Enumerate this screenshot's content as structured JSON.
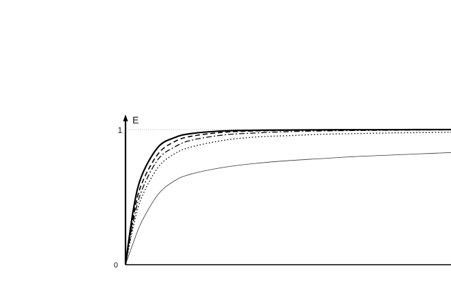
{
  "chart_data": {
    "type": "line",
    "title": "",
    "xlabel": "",
    "ylabel": "E",
    "origin_label": "0",
    "ytick_labels": [
      "1"
    ],
    "ylim": [
      0,
      1
    ],
    "xlim": [
      0,
      10
    ],
    "grid": false,
    "reference_line": {
      "y": 1,
      "style": "dotted"
    },
    "x": [
      0,
      0.25,
      0.5,
      1,
      1.5,
      2,
      3,
      4,
      5,
      6,
      7,
      8,
      9,
      10
    ],
    "series": [
      {
        "style": "solid-thick",
        "values": [
          0,
          0.42,
          0.66,
          0.87,
          0.94,
          0.97,
          0.99,
          0.995,
          0.997,
          0.998,
          0.999,
          0.999,
          1.0,
          1.0
        ]
      },
      {
        "style": "dashed",
        "values": [
          0,
          0.37,
          0.6,
          0.82,
          0.91,
          0.95,
          0.98,
          0.99,
          0.995,
          0.997,
          0.998,
          0.999,
          0.999,
          1.0
        ]
      },
      {
        "style": "dash-dot",
        "values": [
          0,
          0.33,
          0.55,
          0.78,
          0.87,
          0.92,
          0.96,
          0.975,
          0.985,
          0.99,
          0.993,
          0.995,
          0.997,
          0.998
        ]
      },
      {
        "style": "dotted",
        "values": [
          0,
          0.29,
          0.5,
          0.72,
          0.82,
          0.87,
          0.92,
          0.945,
          0.955,
          0.965,
          0.97,
          0.975,
          0.978,
          0.98
        ]
      },
      {
        "style": "solid-thin",
        "values": [
          0,
          0.17,
          0.32,
          0.52,
          0.62,
          0.67,
          0.72,
          0.75,
          0.77,
          0.785,
          0.8,
          0.81,
          0.82,
          0.83
        ]
      }
    ]
  }
}
